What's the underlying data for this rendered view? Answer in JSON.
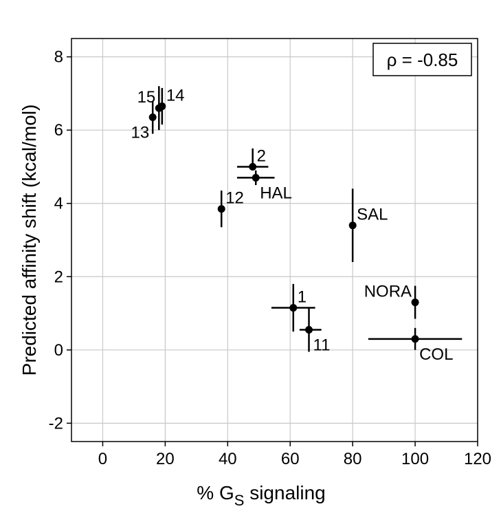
{
  "chart_data": {
    "type": "scatter",
    "xlabel_main": "% G",
    "xlabel_sub": "S",
    "xlabel_tail": " signaling",
    "ylabel": "Predicted affinity shift (kcal/mol)",
    "xlim": [
      -10,
      120
    ],
    "ylim": [
      -2.5,
      8.5
    ],
    "xticks": [
      0,
      20,
      40,
      60,
      80,
      100,
      120
    ],
    "yticks": [
      -2,
      0,
      2,
      4,
      6,
      8
    ],
    "xtick_labels": [
      "0",
      "20",
      "40",
      "60",
      "80",
      "100",
      "120"
    ],
    "ytick_labels": [
      "-2",
      "0",
      "2",
      "4",
      "6",
      "8"
    ],
    "grid": true,
    "annotation": "ρ = -0.85",
    "annotation_position": "top-right",
    "points": [
      {
        "label": "15",
        "x": 18,
        "y": 6.6,
        "xerr": [
          0,
          0
        ],
        "yerr": [
          0.6,
          0.6
        ],
        "label_side": "upper-left"
      },
      {
        "label": "14",
        "x": 19,
        "y": 6.65,
        "xerr": [
          0,
          0
        ],
        "yerr": [
          0.5,
          0.5
        ],
        "label_side": "upper-right"
      },
      {
        "label": "13",
        "x": 16,
        "y": 6.35,
        "xerr": [
          0,
          0
        ],
        "yerr": [
          0.45,
          0.45
        ],
        "label_side": "lower-left"
      },
      {
        "label": "2",
        "x": 48,
        "y": 5.0,
        "xerr": [
          5,
          5
        ],
        "yerr": [
          0.5,
          0.0
        ],
        "label_side": "upper-right"
      },
      {
        "label": "HAL",
        "x": 49,
        "y": 4.7,
        "xerr": [
          6,
          6
        ],
        "yerr": [
          0.2,
          0.2
        ],
        "label_side": "lower-right"
      },
      {
        "label": "12",
        "x": 38,
        "y": 3.85,
        "xerr": [
          0,
          0
        ],
        "yerr": [
          0.5,
          0.5
        ],
        "label_side": "upper-right"
      },
      {
        "label": "SAL",
        "x": 80,
        "y": 3.4,
        "xerr": [
          0,
          0
        ],
        "yerr": [
          1.0,
          1.0
        ],
        "label_side": "upper-right"
      },
      {
        "label": "1",
        "x": 61,
        "y": 1.15,
        "xerr": [
          7,
          7
        ],
        "yerr": [
          0.65,
          0.65
        ],
        "label_side": "upper-right"
      },
      {
        "label": "11",
        "x": 66,
        "y": 0.55,
        "xerr": [
          3,
          4
        ],
        "yerr": [
          0.6,
          0.6
        ],
        "label_side": "lower-right"
      },
      {
        "label": "NORA",
        "x": 100,
        "y": 1.3,
        "xerr": [
          0,
          0
        ],
        "yerr": [
          0.45,
          0.45
        ],
        "label_side": "upper-left"
      },
      {
        "label": "COL",
        "x": 100,
        "y": 0.3,
        "xerr": [
          15,
          15
        ],
        "yerr": [
          0.3,
          0.3
        ],
        "label_side": "lower-right"
      }
    ]
  }
}
